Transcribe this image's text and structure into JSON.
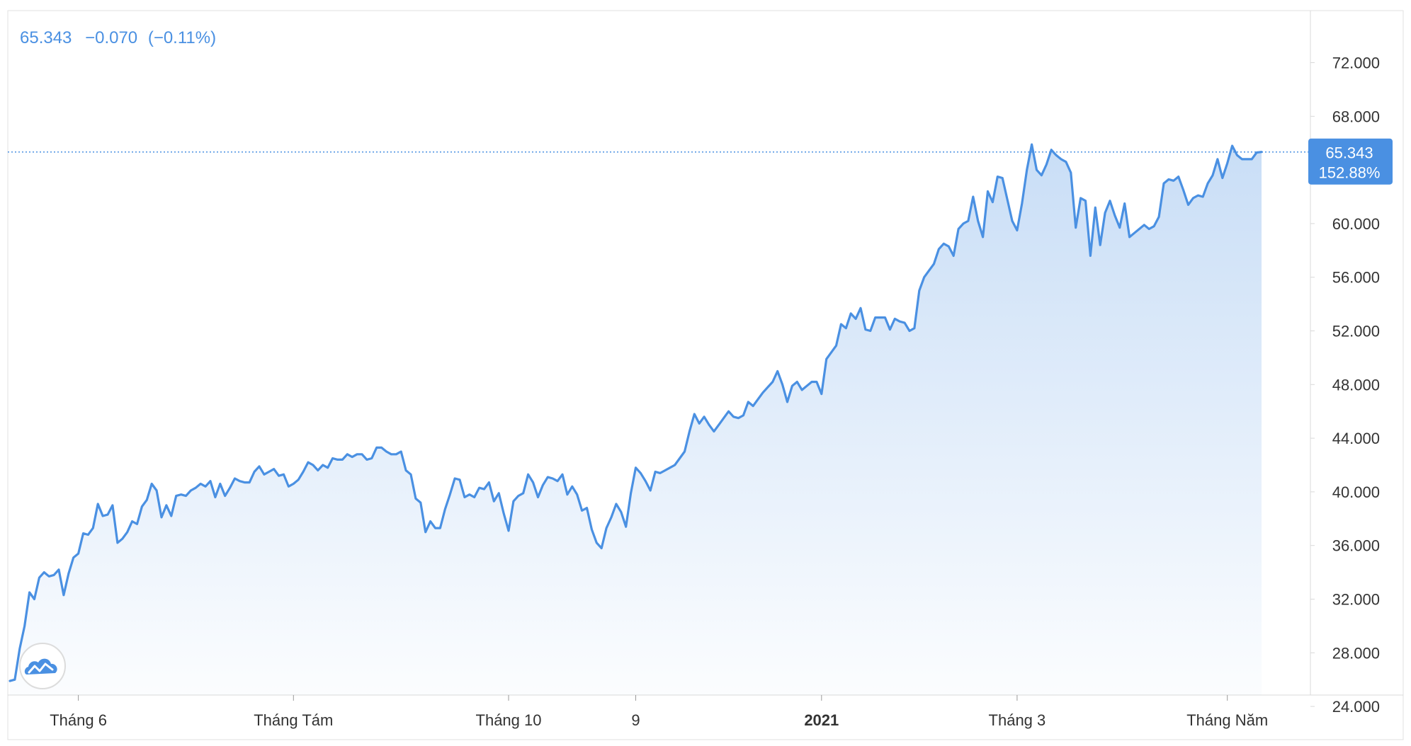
{
  "header": {
    "price": "65.343",
    "change": "−0.070",
    "change_pct": "(−0.11%)"
  },
  "price_tag": {
    "value": "65.343",
    "percent": "152.88%"
  },
  "colors": {
    "line": "#4a90e2",
    "header_text": "#4a90e2",
    "price_tag_bg": "#4a90e2",
    "price_tag_text": "#ffffff",
    "axis_text": "#333333",
    "axis_line": "#d9d9d9",
    "border": "#e0e0e0"
  },
  "icons": {
    "logo": "cloud-chart-logo-icon"
  },
  "chart_data": {
    "type": "area",
    "title": "",
    "xlabel": "",
    "ylabel": "",
    "grid": false,
    "y_axis_side": "right",
    "ylim": [
      22.0,
      72.0
    ],
    "x_tick_labels": [
      {
        "label": "Tháng 6",
        "bold": false,
        "index": 14
      },
      {
        "label": "Tháng Tám",
        "bold": false,
        "index": 58
      },
      {
        "label": "Tháng 10",
        "bold": false,
        "index": 102
      },
      {
        "label": "9",
        "bold": false,
        "index": 128
      },
      {
        "label": "2021",
        "bold": true,
        "index": 166
      },
      {
        "label": "Tháng 3",
        "bold": false,
        "index": 206
      },
      {
        "label": "Tháng Năm",
        "bold": false,
        "index": 249
      }
    ],
    "y_ticks": [
      "24.000",
      "28.000",
      "32.000",
      "36.000",
      "40.000",
      "44.000",
      "48.000",
      "52.000",
      "56.000",
      "60.000",
      "64.000",
      "68.000",
      "72.000"
    ],
    "y_tick_values": [
      24,
      28,
      32,
      36,
      40,
      44,
      48,
      52,
      56,
      60,
      64,
      68,
      72
    ],
    "last_value": 65.343,
    "series": [
      {
        "values": [
          25.9,
          26.0,
          28.3,
          30.0,
          32.5,
          32.0,
          33.6,
          34.0,
          33.7,
          33.8,
          34.2,
          32.3,
          33.9,
          35.1,
          35.4,
          36.9,
          36.8,
          37.3,
          39.1,
          38.2,
          38.3,
          39.0,
          36.2,
          36.5,
          37.0,
          37.8,
          37.6,
          38.9,
          39.4,
          40.6,
          40.1,
          38.1,
          39.0,
          38.2,
          39.7,
          39.8,
          39.7,
          40.1,
          40.3,
          40.6,
          40.4,
          40.8,
          39.6,
          40.6,
          39.7,
          40.3,
          41.0,
          40.8,
          40.7,
          40.7,
          41.5,
          41.9,
          41.3,
          41.5,
          41.7,
          41.2,
          41.3,
          40.4,
          40.6,
          40.9,
          41.5,
          42.2,
          42.0,
          41.6,
          42.0,
          41.8,
          42.5,
          42.4,
          42.4,
          42.8,
          42.6,
          42.8,
          42.8,
          42.4,
          42.5,
          43.3,
          43.3,
          43.0,
          42.8,
          42.8,
          43.0,
          41.6,
          41.3,
          39.5,
          39.2,
          37.0,
          37.8,
          37.3,
          37.3,
          38.7,
          39.8,
          41.0,
          40.9,
          39.6,
          39.8,
          39.6,
          40.3,
          40.2,
          40.7,
          39.3,
          39.9,
          38.4,
          37.1,
          39.3,
          39.7,
          39.9,
          41.3,
          40.7,
          39.6,
          40.5,
          41.1,
          41.0,
          40.8,
          41.3,
          39.8,
          40.4,
          39.8,
          38.6,
          38.8,
          37.2,
          36.2,
          35.8,
          37.3,
          38.1,
          39.1,
          38.5,
          37.4,
          39.9,
          41.8,
          41.4,
          40.8,
          40.1,
          41.5,
          41.4,
          41.6,
          41.8,
          42.0,
          42.5,
          43.0,
          44.5,
          45.8,
          45.1,
          45.6,
          45.0,
          44.5,
          45.0,
          45.5,
          46.0,
          45.6,
          45.5,
          45.7,
          46.7,
          46.4,
          46.9,
          47.4,
          47.8,
          48.2,
          49.0,
          48.0,
          46.7,
          47.9,
          48.2,
          47.6,
          47.9,
          48.2,
          48.2,
          47.3,
          49.9,
          50.4,
          50.9,
          52.5,
          52.2,
          53.3,
          52.9,
          53.7,
          52.1,
          52.0,
          53.0,
          53.0,
          53.0,
          52.1,
          52.9,
          52.7,
          52.6,
          52.0,
          52.2,
          55.0,
          56.0,
          56.5,
          57.0,
          58.1,
          58.5,
          58.3,
          57.6,
          59.6,
          60.0,
          60.2,
          62.0,
          60.2,
          59.0,
          62.4,
          61.6,
          63.5,
          63.4,
          61.8,
          60.2,
          59.5,
          61.5,
          64.0,
          65.9,
          64.0,
          63.6,
          64.4,
          65.5,
          65.1,
          64.8,
          64.6,
          63.8,
          59.7,
          61.9,
          61.7,
          57.6,
          61.2,
          58.4,
          60.8,
          61.7,
          60.6,
          59.7,
          61.5,
          59.0,
          59.3,
          59.6,
          59.9,
          59.6,
          59.8,
          60.5,
          63.0,
          63.3,
          63.2,
          63.5,
          62.5,
          61.4,
          61.9,
          62.1,
          62.0,
          63.0,
          63.6,
          64.8,
          63.4,
          64.5,
          65.8,
          65.1,
          64.8,
          64.8,
          64.8,
          65.3,
          65.343
        ]
      }
    ]
  }
}
